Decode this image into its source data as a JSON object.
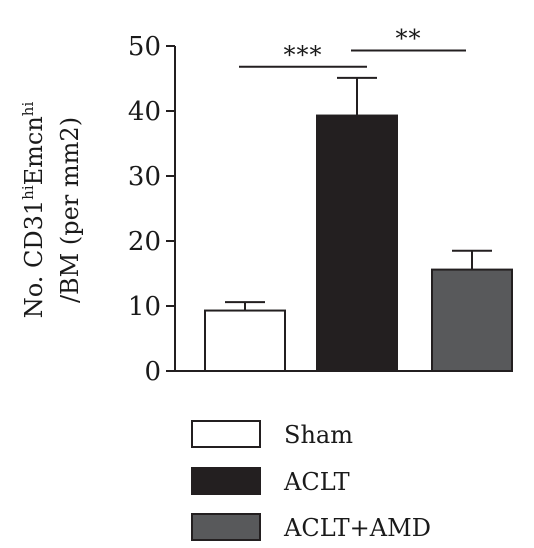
{
  "chart_data": {
    "type": "bar",
    "categories": [
      "Sham",
      "ACLT",
      "ACLT+AMD"
    ],
    "values": [
      9.3,
      39.3,
      15.6
    ],
    "errors": [
      1.3,
      5.8,
      2.9
    ],
    "colors": [
      "#ffffff",
      "#231f20",
      "#58595b"
    ],
    "ylim": [
      0,
      50
    ],
    "yticks": [
      "0",
      "10",
      "20",
      "30",
      "40",
      "50"
    ],
    "ylabel": {
      "line1_prefix": "No. CD31",
      "line1_sup1": "hi",
      "line1_mid": "Emcn",
      "line1_sup2": "hi",
      "line2": "/BM (per mm2)"
    },
    "significance": [
      {
        "from": 0,
        "to": 1,
        "label": "***"
      },
      {
        "from": 1,
        "to": 2,
        "label": "**"
      }
    ],
    "legend": [
      "Sham",
      "ACLT",
      "ACLT+AMD"
    ],
    "legend_position": "bottom-center",
    "grid": false
  }
}
